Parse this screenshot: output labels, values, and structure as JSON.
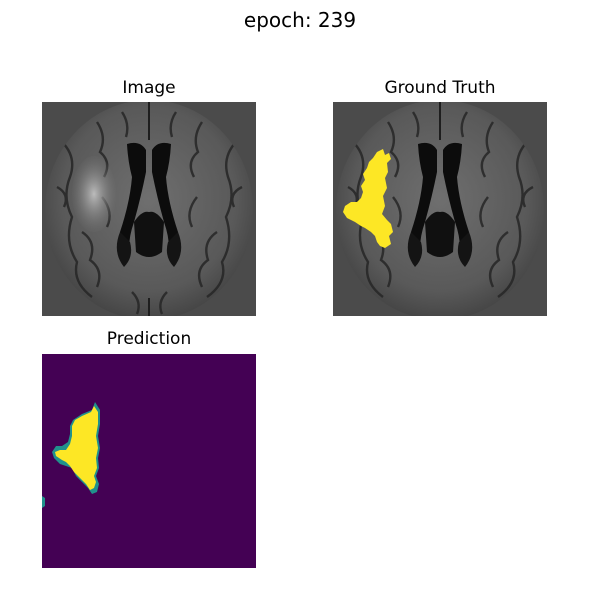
{
  "figure": {
    "title": "epoch: 239"
  },
  "panels": {
    "image": {
      "title": "Image"
    },
    "ground_truth": {
      "title": "Ground Truth"
    },
    "prediction": {
      "title": "Prediction"
    }
  },
  "colors": {
    "background_slice": "#4b4b4b",
    "mask_yellow": "#fde725",
    "mask_purple": "#440154",
    "mask_teal": "#21918c"
  }
}
